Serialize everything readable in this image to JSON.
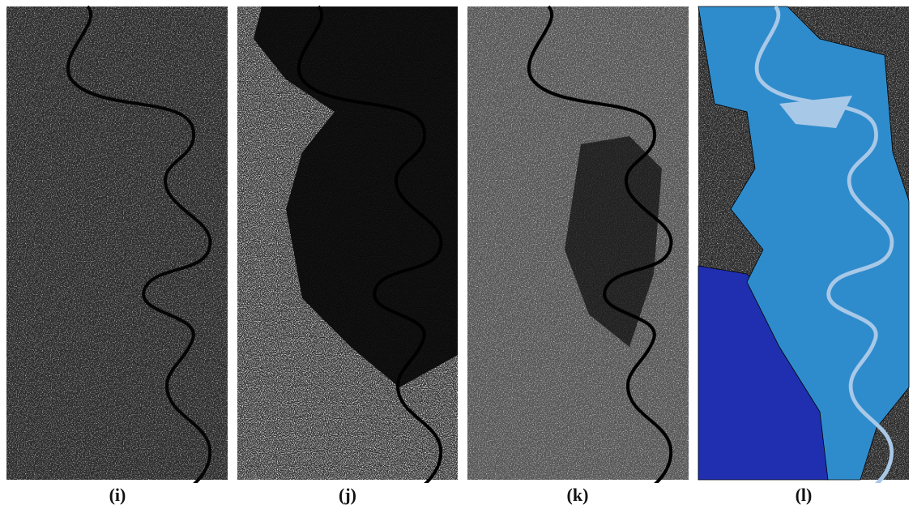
{
  "panels": [
    {
      "label": "(i)"
    },
    {
      "label": "(j)"
    },
    {
      "label": "(k)"
    },
    {
      "label": "(l)"
    }
  ]
}
